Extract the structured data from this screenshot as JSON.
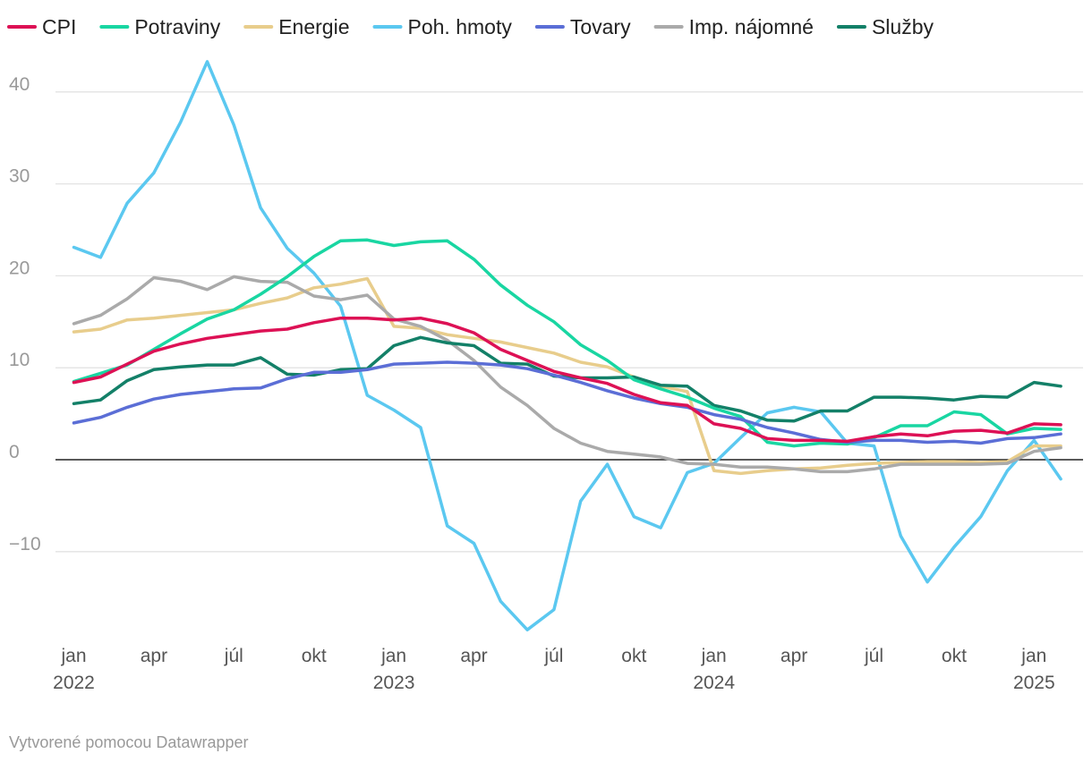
{
  "chart_data": {
    "type": "line",
    "title": "",
    "xlabel": "",
    "ylabel": "",
    "legend_position": "top",
    "grid": true,
    "ylim": [
      -19,
      45
    ],
    "yticks": [
      -10,
      0,
      10,
      20,
      30,
      40
    ],
    "ytick_labels": [
      "−10",
      "0",
      "10",
      "20",
      "30",
      "40"
    ],
    "x": [
      "2022-01",
      "2022-02",
      "2022-03",
      "2022-04",
      "2022-05",
      "2022-06",
      "2022-07",
      "2022-08",
      "2022-09",
      "2022-10",
      "2022-11",
      "2022-12",
      "2023-01",
      "2023-02",
      "2023-03",
      "2023-04",
      "2023-05",
      "2023-06",
      "2023-07",
      "2023-08",
      "2023-09",
      "2023-10",
      "2023-11",
      "2023-12",
      "2024-01",
      "2024-02",
      "2024-03",
      "2024-04",
      "2024-05",
      "2024-06",
      "2024-07",
      "2024-08",
      "2024-09",
      "2024-10",
      "2024-11",
      "2024-12",
      "2025-01",
      "2025-02"
    ],
    "xticks": [
      {
        "x": "2022-01",
        "line1": "jan",
        "line2": "2022"
      },
      {
        "x": "2022-04",
        "line1": "apr",
        "line2": ""
      },
      {
        "x": "2022-07",
        "line1": "júl",
        "line2": ""
      },
      {
        "x": "2022-10",
        "line1": "okt",
        "line2": ""
      },
      {
        "x": "2023-01",
        "line1": "jan",
        "line2": "2023"
      },
      {
        "x": "2023-04",
        "line1": "apr",
        "line2": ""
      },
      {
        "x": "2023-07",
        "line1": "júl",
        "line2": ""
      },
      {
        "x": "2023-10",
        "line1": "okt",
        "line2": ""
      },
      {
        "x": "2024-01",
        "line1": "jan",
        "line2": "2024"
      },
      {
        "x": "2024-04",
        "line1": "apr",
        "line2": ""
      },
      {
        "x": "2024-07",
        "line1": "júl",
        "line2": ""
      },
      {
        "x": "2024-10",
        "line1": "okt",
        "line2": ""
      },
      {
        "x": "2025-01",
        "line1": "jan",
        "line2": "2025"
      }
    ],
    "series": [
      {
        "name": "Poh. hmoty",
        "color": "#5bc8f0",
        "values": [
          23.1,
          22.0,
          27.9,
          31.2,
          36.7,
          43.3,
          36.4,
          27.4,
          23.0,
          20.3,
          16.7,
          7.0,
          5.4,
          3.5,
          -7.2,
          -9.1,
          -15.4,
          -18.5,
          -16.3,
          -4.5,
          -0.5,
          -6.2,
          -7.4,
          -1.4,
          -0.4,
          2.4,
          5.1,
          5.7,
          5.2,
          1.8,
          1.5,
          -8.3,
          -13.3,
          -9.5,
          -6.2,
          -1.2,
          2.1,
          -2.1
        ]
      },
      {
        "name": "Energie",
        "color": "#e8cd8c",
        "values": [
          13.9,
          14.2,
          15.2,
          15.4,
          15.7,
          16.0,
          16.3,
          17.0,
          17.6,
          18.7,
          19.1,
          19.7,
          14.5,
          14.3,
          13.6,
          13.2,
          12.8,
          12.2,
          11.6,
          10.6,
          10.1,
          9.0,
          8.0,
          7.4,
          -1.2,
          -1.5,
          -1.2,
          -1.0,
          -0.9,
          -0.6,
          -0.4,
          -0.3,
          -0.2,
          -0.2,
          -0.3,
          -0.2,
          1.5,
          1.5
        ]
      },
      {
        "name": "Imp. nájomné",
        "color": "#aaaaaa",
        "values": [
          14.8,
          15.7,
          17.5,
          19.8,
          19.4,
          18.5,
          19.9,
          19.4,
          19.3,
          17.8,
          17.4,
          17.9,
          15.3,
          14.5,
          13.0,
          10.8,
          7.9,
          5.9,
          3.4,
          1.8,
          0.9,
          0.6,
          0.3,
          -0.4,
          -0.5,
          -0.8,
          -0.8,
          -1.0,
          -1.3,
          -1.3,
          -1.0,
          -0.5,
          -0.5,
          -0.5,
          -0.5,
          -0.4,
          0.9,
          1.3
        ]
      },
      {
        "name": "Služby",
        "color": "#138068",
        "values": [
          6.1,
          6.5,
          8.6,
          9.8,
          10.1,
          10.3,
          10.3,
          11.1,
          9.3,
          9.2,
          9.8,
          9.9,
          12.4,
          13.3,
          12.7,
          12.4,
          10.5,
          10.4,
          9.1,
          8.9,
          8.9,
          9.0,
          8.1,
          8.0,
          5.9,
          5.3,
          4.3,
          4.2,
          5.3,
          5.3,
          6.8,
          6.8,
          6.7,
          6.5,
          6.9,
          6.8,
          8.4,
          8.0
        ]
      },
      {
        "name": "Potraviny",
        "color": "#19d6a2",
        "values": [
          8.5,
          9.4,
          10.3,
          12.0,
          13.7,
          15.3,
          16.3,
          18.0,
          19.9,
          22.1,
          23.8,
          23.9,
          23.3,
          23.7,
          23.8,
          21.8,
          19.0,
          16.8,
          15.0,
          12.5,
          10.8,
          8.7,
          7.7,
          6.8,
          5.6,
          4.7,
          1.9,
          1.5,
          1.8,
          1.7,
          2.4,
          3.7,
          3.7,
          5.2,
          4.9,
          2.8,
          3.4,
          3.3
        ]
      },
      {
        "name": "Tovary",
        "color": "#5b6ed6",
        "values": [
          4.0,
          4.6,
          5.7,
          6.6,
          7.1,
          7.4,
          7.7,
          7.8,
          8.8,
          9.5,
          9.5,
          9.8,
          10.4,
          10.5,
          10.6,
          10.5,
          10.3,
          9.9,
          9.2,
          8.4,
          7.5,
          6.7,
          6.1,
          5.7,
          4.9,
          4.4,
          3.5,
          2.9,
          2.2,
          1.9,
          2.1,
          2.1,
          1.9,
          2.0,
          1.8,
          2.3,
          2.4,
          2.8
        ]
      },
      {
        "name": "CPI",
        "color": "#dd1155",
        "values": [
          8.4,
          9.0,
          10.4,
          11.8,
          12.6,
          13.2,
          13.6,
          14.0,
          14.2,
          14.9,
          15.4,
          15.4,
          15.2,
          15.4,
          14.8,
          13.8,
          12.0,
          10.8,
          9.6,
          8.9,
          8.3,
          7.1,
          6.2,
          5.9,
          3.9,
          3.4,
          2.3,
          2.1,
          2.1,
          2.0,
          2.5,
          2.8,
          2.6,
          3.1,
          3.2,
          2.9,
          3.9,
          3.8
        ]
      }
    ],
    "legend": [
      {
        "name": "CPI",
        "color": "#dd1155"
      },
      {
        "name": "Potraviny",
        "color": "#19d6a2"
      },
      {
        "name": "Energie",
        "color": "#e8cd8c"
      },
      {
        "name": "Poh. hmoty",
        "color": "#5bc8f0"
      },
      {
        "name": "Tovary",
        "color": "#5b6ed6"
      },
      {
        "name": "Imp. nájomné",
        "color": "#aaaaaa"
      },
      {
        "name": "Služby",
        "color": "#138068"
      }
    ]
  },
  "footer": {
    "credit": "Vytvorené pomocou Datawrapper"
  }
}
